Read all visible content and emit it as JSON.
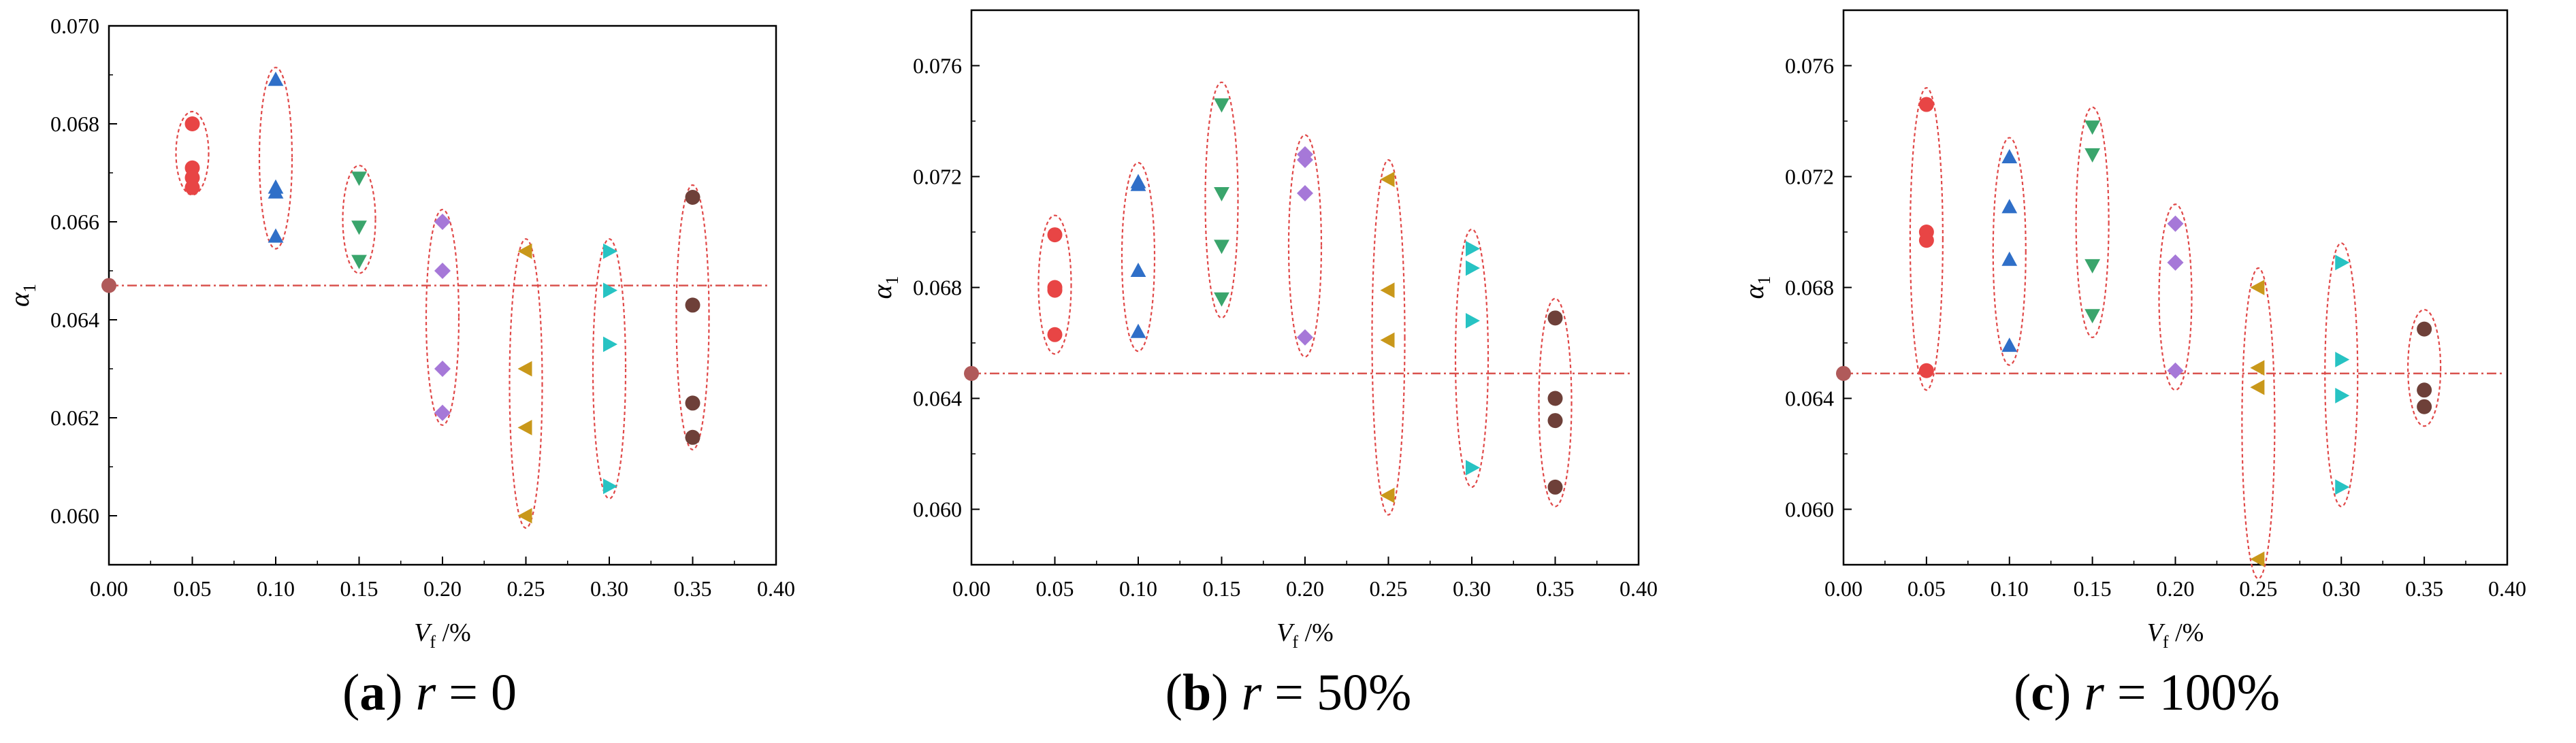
{
  "chart_data": [
    {
      "type": "scatter",
      "caption": {
        "label": "a",
        "text": "r = 0"
      },
      "xlabel_main": "V",
      "xlabel_sub": "f",
      "xlabel_unit": " /%",
      "ylabel_main": "α",
      "ylabel_sub": "1",
      "xlim": [
        0,
        0.4
      ],
      "ylim": [
        0.059,
        0.07
      ],
      "xticks": [
        "0.00",
        "0.05",
        "0.10",
        "0.15",
        "0.20",
        "0.25",
        "0.30",
        "0.35",
        "0.40"
      ],
      "yticks": [
        "0.060",
        "0.062",
        "0.064",
        "0.066",
        "0.068",
        "0.070"
      ],
      "reference_line": 0.0647,
      "series": [
        {
          "name": "0.00",
          "color": "#b05a5a",
          "marker": "circle",
          "x": 0.0,
          "values": [
            0.0647
          ]
        },
        {
          "name": "0.05",
          "color": "#e84545",
          "marker": "circle",
          "x": 0.05,
          "values": [
            0.068,
            0.0671,
            0.0669,
            0.0667
          ]
        },
        {
          "name": "0.10",
          "color": "#2f6fc8",
          "marker": "triangle-up",
          "x": 0.1,
          "values": [
            0.0689,
            0.0667,
            0.0666,
            0.0657
          ]
        },
        {
          "name": "0.15",
          "color": "#3aa56c",
          "marker": "triangle-down",
          "x": 0.15,
          "values": [
            0.0669,
            0.0659,
            0.0652
          ]
        },
        {
          "name": "0.20",
          "color": "#a678d8",
          "marker": "diamond",
          "x": 0.2,
          "values": [
            0.066,
            0.065,
            0.063,
            0.0621
          ]
        },
        {
          "name": "0.25",
          "color": "#c9981a",
          "marker": "triangle-left",
          "x": 0.25,
          "values": [
            0.0654,
            0.063,
            0.0618,
            0.06
          ]
        },
        {
          "name": "0.30",
          "color": "#27c3c3",
          "marker": "triangle-right",
          "x": 0.3,
          "values": [
            0.0654,
            0.0646,
            0.0635,
            0.0606
          ]
        },
        {
          "name": "0.35",
          "color": "#6e4039",
          "marker": "circle",
          "x": 0.35,
          "values": [
            0.0665,
            0.0643,
            0.0623,
            0.0616
          ]
        }
      ],
      "ellipses": [
        {
          "x": 0.05,
          "ymin": 0.06655,
          "ymax": 0.06825
        },
        {
          "x": 0.1,
          "ymin": 0.06545,
          "ymax": 0.06915
        },
        {
          "x": 0.15,
          "ymin": 0.06495,
          "ymax": 0.06715
        },
        {
          "x": 0.2,
          "ymin": 0.06185,
          "ymax": 0.06625
        },
        {
          "x": 0.25,
          "ymin": 0.05975,
          "ymax": 0.06565
        },
        {
          "x": 0.3,
          "ymin": 0.06035,
          "ymax": 0.06565
        },
        {
          "x": 0.35,
          "ymin": 0.06135,
          "ymax": 0.06675
        }
      ]
    },
    {
      "type": "scatter",
      "caption": {
        "label": "b",
        "text": "r = 50%"
      },
      "xlabel_main": "V",
      "xlabel_sub": "f",
      "xlabel_unit": " /%",
      "ylabel_main": "α",
      "ylabel_sub": "1",
      "xlim": [
        0,
        0.4
      ],
      "ylim": [
        0.058,
        0.078
      ],
      "xticks": [
        "0.00",
        "0.05",
        "0.10",
        "0.15",
        "0.20",
        "0.25",
        "0.30",
        "0.35",
        "0.40"
      ],
      "yticks": [
        "0.060",
        "0.064",
        "0.068",
        "0.072",
        "0.076"
      ],
      "reference_line": 0.0649,
      "series": [
        {
          "name": "0.00",
          "color": "#b05a5a",
          "marker": "circle",
          "x": 0.0,
          "values": [
            0.0649
          ]
        },
        {
          "name": "0.05",
          "color": "#e84545",
          "marker": "circle",
          "x": 0.05,
          "values": [
            0.0699,
            0.068,
            0.0679,
            0.0663
          ]
        },
        {
          "name": "0.10",
          "color": "#2f6fc8",
          "marker": "triangle-up",
          "x": 0.1,
          "values": [
            0.0718,
            0.0717,
            0.0686,
            0.0664
          ]
        },
        {
          "name": "0.15",
          "color": "#3aa56c",
          "marker": "triangle-down",
          "x": 0.15,
          "values": [
            0.0746,
            0.0714,
            0.0695,
            0.0676
          ]
        },
        {
          "name": "0.20",
          "color": "#a678d8",
          "marker": "diamond",
          "x": 0.2,
          "values": [
            0.0728,
            0.0726,
            0.0714,
            0.0662
          ]
        },
        {
          "name": "0.25",
          "color": "#c9981a",
          "marker": "triangle-left",
          "x": 0.25,
          "values": [
            0.0719,
            0.0679,
            0.0661,
            0.0605
          ]
        },
        {
          "name": "0.30",
          "color": "#27c3c3",
          "marker": "triangle-right",
          "x": 0.3,
          "values": [
            0.0694,
            0.0687,
            0.0668,
            0.0615
          ]
        },
        {
          "name": "0.35",
          "color": "#6e4039",
          "marker": "circle",
          "x": 0.35,
          "values": [
            0.0669,
            0.064,
            0.0632,
            0.0608
          ]
        }
      ],
      "ellipses": [
        {
          "x": 0.05,
          "ymin": 0.0656,
          "ymax": 0.0706
        },
        {
          "x": 0.1,
          "ymin": 0.0657,
          "ymax": 0.0725
        },
        {
          "x": 0.15,
          "ymin": 0.0669,
          "ymax": 0.0754
        },
        {
          "x": 0.2,
          "ymin": 0.0655,
          "ymax": 0.0735
        },
        {
          "x": 0.25,
          "ymin": 0.0598,
          "ymax": 0.0726
        },
        {
          "x": 0.3,
          "ymin": 0.0608,
          "ymax": 0.0701
        },
        {
          "x": 0.35,
          "ymin": 0.0601,
          "ymax": 0.0676
        }
      ]
    },
    {
      "type": "scatter",
      "caption": {
        "label": "c",
        "text": "r = 100%"
      },
      "xlabel_main": "V",
      "xlabel_sub": "f",
      "xlabel_unit": " /%",
      "ylabel_main": "α",
      "ylabel_sub": "1",
      "xlim": [
        0,
        0.4
      ],
      "ylim": [
        0.058,
        0.078
      ],
      "xticks": [
        "0.00",
        "0.05",
        "0.10",
        "0.15",
        "0.20",
        "0.25",
        "0.30",
        "0.35",
        "0.40"
      ],
      "yticks": [
        "0.060",
        "0.064",
        "0.068",
        "0.072",
        "0.076"
      ],
      "reference_line": 0.0649,
      "series": [
        {
          "name": "0.00",
          "color": "#b05a5a",
          "marker": "circle",
          "x": 0.0,
          "values": [
            0.0649
          ]
        },
        {
          "name": "0.05",
          "color": "#e84545",
          "marker": "circle",
          "x": 0.05,
          "values": [
            0.0746,
            0.07,
            0.0697,
            0.065
          ]
        },
        {
          "name": "0.10",
          "color": "#2f6fc8",
          "marker": "triangle-up",
          "x": 0.1,
          "values": [
            0.0727,
            0.0709,
            0.069,
            0.0659
          ]
        },
        {
          "name": "0.15",
          "color": "#3aa56c",
          "marker": "triangle-down",
          "x": 0.15,
          "values": [
            0.0738,
            0.0728,
            0.0688,
            0.067
          ]
        },
        {
          "name": "0.20",
          "color": "#a678d8",
          "marker": "diamond",
          "x": 0.2,
          "values": [
            0.0703,
            0.0689,
            0.065
          ]
        },
        {
          "name": "0.25",
          "color": "#c9981a",
          "marker": "triangle-left",
          "x": 0.25,
          "values": [
            0.068,
            0.0651,
            0.0644,
            0.0582
          ]
        },
        {
          "name": "0.30",
          "color": "#27c3c3",
          "marker": "triangle-right",
          "x": 0.3,
          "values": [
            0.0689,
            0.0654,
            0.0641,
            0.0608
          ]
        },
        {
          "name": "0.35",
          "color": "#6e4039",
          "marker": "circle",
          "x": 0.35,
          "values": [
            0.0665,
            0.0643,
            0.0637
          ]
        }
      ],
      "ellipses": [
        {
          "x": 0.05,
          "ymin": 0.0643,
          "ymax": 0.0752
        },
        {
          "x": 0.1,
          "ymin": 0.0652,
          "ymax": 0.0734
        },
        {
          "x": 0.15,
          "ymin": 0.0662,
          "ymax": 0.0745
        },
        {
          "x": 0.2,
          "ymin": 0.0643,
          "ymax": 0.071
        },
        {
          "x": 0.25,
          "ymin": 0.0575,
          "ymax": 0.0687
        },
        {
          "x": 0.3,
          "ymin": 0.0601,
          "ymax": 0.0696
        },
        {
          "x": 0.35,
          "ymin": 0.063,
          "ymax": 0.0672
        }
      ]
    }
  ]
}
